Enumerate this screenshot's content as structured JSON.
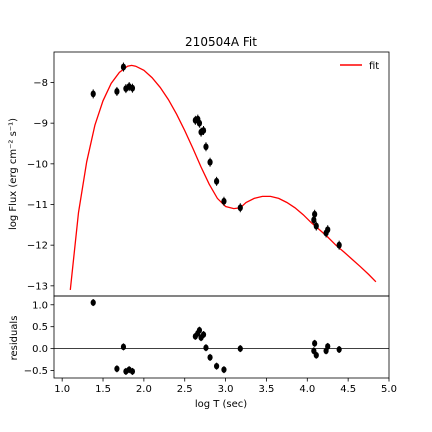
{
  "chart_data": [
    {
      "type": "scatter",
      "panel": "main",
      "title": "210504A Fit",
      "xlabel": "",
      "ylabel": "log Flux (erg cm⁻² s⁻¹)",
      "xlim": [
        0.9,
        5.0
      ],
      "ylim": [
        -13.25,
        -7.25
      ],
      "yticks": [
        -8,
        -9,
        -10,
        -11,
        -12,
        -13
      ],
      "legend": {
        "position": "top-right",
        "entries": [
          "fit"
        ]
      },
      "colors": {
        "fit": "#ff0000",
        "points": "#000000"
      },
      "points": [
        {
          "x": 1.38,
          "y": -8.28
        },
        {
          "x": 1.67,
          "y": -8.22
        },
        {
          "x": 1.75,
          "y": -7.62
        },
        {
          "x": 1.78,
          "y": -8.15
        },
        {
          "x": 1.82,
          "y": -8.1
        },
        {
          "x": 1.86,
          "y": -8.14
        },
        {
          "x": 2.63,
          "y": -8.93
        },
        {
          "x": 2.66,
          "y": -8.9
        },
        {
          "x": 2.68,
          "y": -9.0
        },
        {
          "x": 2.7,
          "y": -9.22
        },
        {
          "x": 2.73,
          "y": -9.18
        },
        {
          "x": 2.76,
          "y": -9.58
        },
        {
          "x": 2.81,
          "y": -9.96
        },
        {
          "x": 2.89,
          "y": -10.43
        },
        {
          "x": 2.98,
          "y": -10.92
        },
        {
          "x": 3.18,
          "y": -11.08
        },
        {
          "x": 4.08,
          "y": -11.38
        },
        {
          "x": 4.09,
          "y": -11.24
        },
        {
          "x": 4.11,
          "y": -11.53
        },
        {
          "x": 4.23,
          "y": -11.7
        },
        {
          "x": 4.25,
          "y": -11.62
        },
        {
          "x": 4.39,
          "y": -12.0
        }
      ],
      "series": [
        {
          "name": "fit",
          "x": [
            1.1,
            1.2,
            1.3,
            1.4,
            1.5,
            1.6,
            1.7,
            1.8,
            1.85,
            1.9,
            2.0,
            2.1,
            2.2,
            2.3,
            2.4,
            2.5,
            2.6,
            2.7,
            2.8,
            2.9,
            3.0,
            3.1,
            3.18,
            3.25,
            3.35,
            3.45,
            3.55,
            3.65,
            3.75,
            3.85,
            3.95,
            4.05,
            4.15,
            4.25,
            4.35,
            4.45,
            4.55,
            4.65,
            4.75,
            4.84
          ],
          "y": [
            -13.1,
            -11.2,
            -9.95,
            -9.05,
            -8.45,
            -8.02,
            -7.75,
            -7.6,
            -7.58,
            -7.6,
            -7.7,
            -7.88,
            -8.12,
            -8.42,
            -8.78,
            -9.18,
            -9.62,
            -10.08,
            -10.5,
            -10.85,
            -11.05,
            -11.1,
            -11.08,
            -10.95,
            -10.85,
            -10.8,
            -10.8,
            -10.85,
            -10.95,
            -11.08,
            -11.25,
            -11.45,
            -11.62,
            -11.8,
            -12.0,
            -12.17,
            -12.35,
            -12.53,
            -12.72,
            -12.9
          ]
        }
      ]
    },
    {
      "type": "scatter",
      "panel": "residuals",
      "xlabel": "log T (sec)",
      "ylabel": "residuals",
      "xlim": [
        0.9,
        5.0
      ],
      "ylim": [
        -0.67,
        1.2
      ],
      "xticks": [
        "1.0",
        "1.5",
        "2.0",
        "2.5",
        "3.0",
        "3.5",
        "4.0",
        "4.5",
        "5.0"
      ],
      "yticks": [
        "1.0",
        "0.5",
        "0.0",
        "-0.5"
      ],
      "reference_line": 0,
      "points": [
        {
          "x": 1.38,
          "y": 1.05
        },
        {
          "x": 1.67,
          "y": -0.46
        },
        {
          "x": 1.75,
          "y": 0.04
        },
        {
          "x": 1.78,
          "y": -0.52
        },
        {
          "x": 1.82,
          "y": -0.48
        },
        {
          "x": 1.86,
          "y": -0.52
        },
        {
          "x": 2.63,
          "y": 0.28
        },
        {
          "x": 2.66,
          "y": 0.35
        },
        {
          "x": 2.68,
          "y": 0.42
        },
        {
          "x": 2.7,
          "y": 0.25
        },
        {
          "x": 2.73,
          "y": 0.32
        },
        {
          "x": 2.76,
          "y": 0.02
        },
        {
          "x": 2.81,
          "y": -0.2
        },
        {
          "x": 2.89,
          "y": -0.4
        },
        {
          "x": 2.98,
          "y": -0.48
        },
        {
          "x": 3.18,
          "y": 0.0
        },
        {
          "x": 4.08,
          "y": -0.05
        },
        {
          "x": 4.09,
          "y": 0.12
        },
        {
          "x": 4.11,
          "y": -0.15
        },
        {
          "x": 4.23,
          "y": -0.05
        },
        {
          "x": 4.25,
          "y": 0.05
        },
        {
          "x": 4.39,
          "y": -0.02
        }
      ]
    }
  ]
}
